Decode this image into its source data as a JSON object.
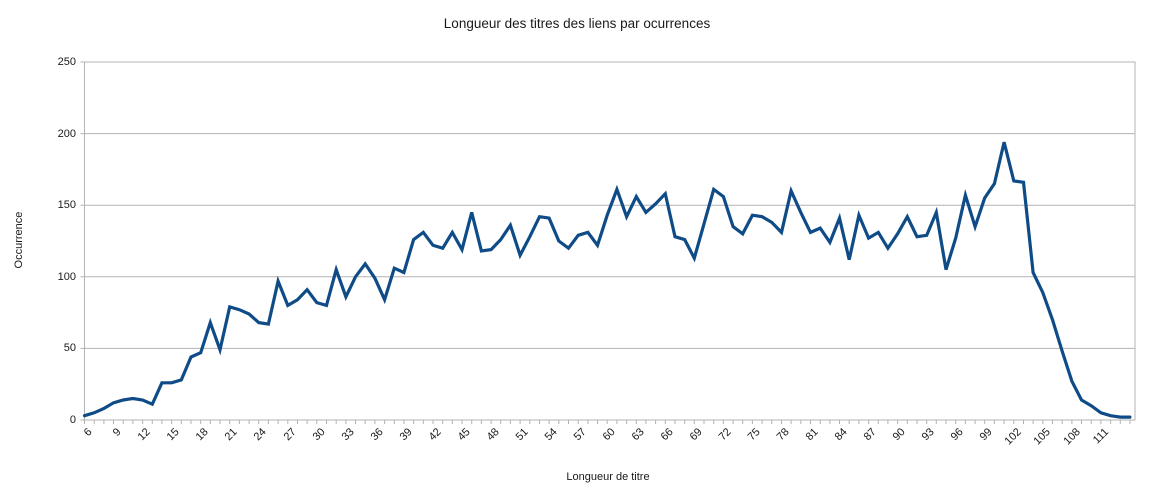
{
  "chart_data": {
    "type": "line",
    "title": "Longueur des titres des liens par ocurrences",
    "xlabel": "Longueur de titre",
    "ylabel": "Occurrence",
    "ylim": [
      0,
      250
    ],
    "y_ticks": [
      0,
      50,
      100,
      150,
      200,
      250
    ],
    "x_tick_labels": [
      6,
      9,
      12,
      15,
      18,
      21,
      24,
      27,
      30,
      33,
      36,
      39,
      42,
      45,
      48,
      51,
      54,
      57,
      60,
      63,
      66,
      69,
      72,
      75,
      78,
      81,
      84,
      87,
      90,
      93,
      96,
      99,
      102,
      105,
      108,
      111
    ],
    "grid": "horizontal",
    "legend": "none",
    "series_color": "#0f4c87",
    "axis_color": "#b3b3b3",
    "text_color": "#1a1a1a",
    "x": [
      6,
      7,
      8,
      9,
      10,
      11,
      12,
      13,
      14,
      15,
      16,
      17,
      18,
      19,
      20,
      21,
      22,
      23,
      24,
      25,
      26,
      27,
      28,
      29,
      30,
      31,
      32,
      33,
      34,
      35,
      36,
      37,
      38,
      39,
      40,
      41,
      42,
      43,
      44,
      45,
      46,
      47,
      48,
      49,
      50,
      51,
      52,
      53,
      54,
      55,
      56,
      57,
      58,
      59,
      60,
      61,
      62,
      63,
      64,
      65,
      66,
      67,
      68,
      69,
      70,
      71,
      72,
      73,
      74,
      75,
      76,
      77,
      78,
      79,
      80,
      81,
      82,
      83,
      84,
      85,
      86,
      87,
      88,
      89,
      90,
      91,
      92,
      93,
      94,
      95,
      96,
      97,
      98,
      99,
      100,
      101,
      102,
      103,
      104,
      105,
      106,
      107,
      108,
      109,
      110,
      111,
      112,
      113,
      114
    ],
    "values": [
      3,
      5,
      8,
      12,
      14,
      15,
      14,
      11,
      26,
      26,
      28,
      44,
      47,
      68,
      49,
      79,
      77,
      74,
      68,
      67,
      97,
      80,
      84,
      91,
      82,
      80,
      105,
      86,
      100,
      109,
      99,
      84,
      106,
      103,
      126,
      131,
      122,
      120,
      131,
      119,
      145,
      118,
      119,
      126,
      136,
      115,
      128,
      142,
      141,
      125,
      120,
      129,
      131,
      122,
      143,
      161,
      142,
      156,
      145,
      151,
      158,
      128,
      126,
      113,
      137,
      161,
      156,
      135,
      130,
      143,
      142,
      138,
      131,
      160,
      145,
      131,
      134,
      124,
      141,
      112,
      143,
      127,
      131,
      120,
      130,
      142,
      128,
      129,
      145,
      105,
      127,
      157,
      135,
      155,
      165,
      194,
      167,
      166,
      103,
      89,
      70,
      48,
      27,
      14,
      10,
      5,
      3,
      2,
      2
    ]
  }
}
